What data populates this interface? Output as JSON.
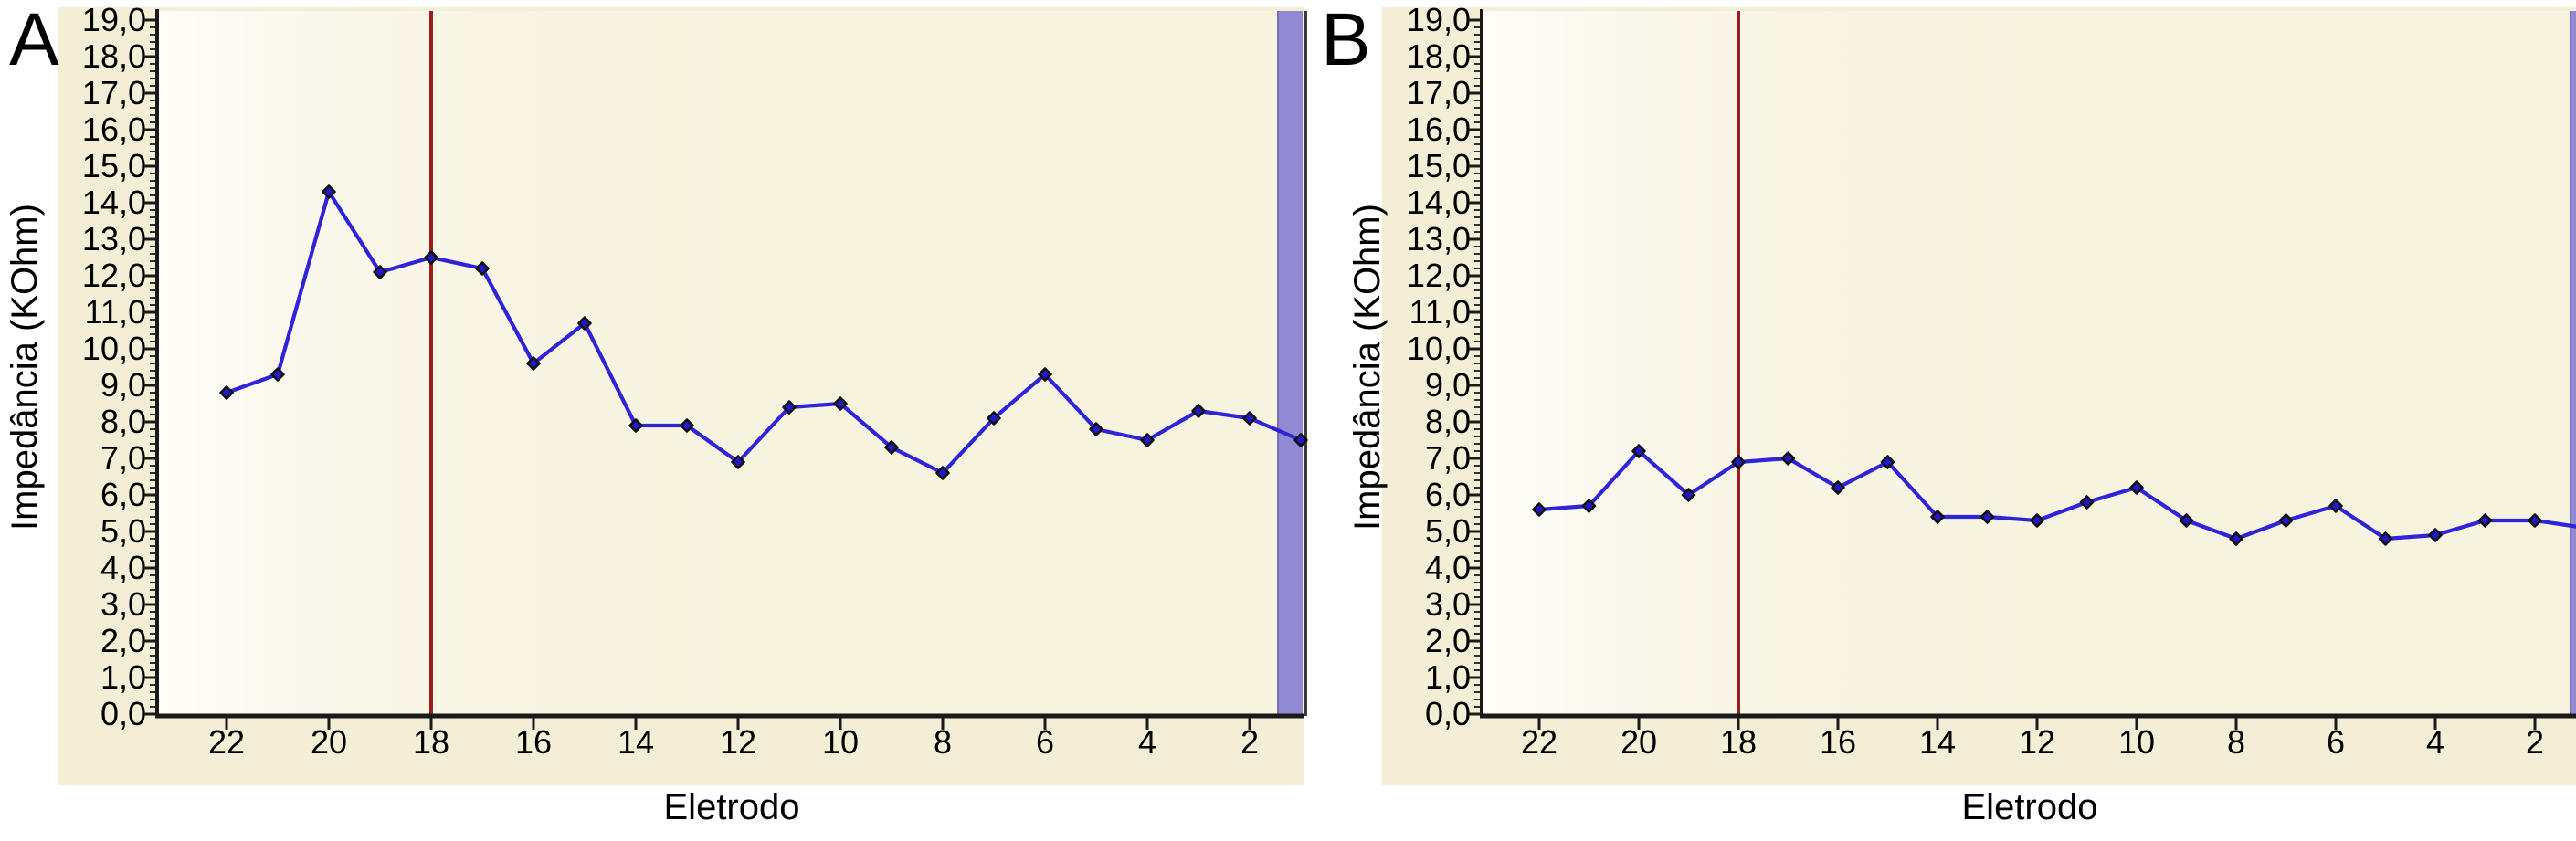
{
  "figure": {
    "description_visible_text_only": "",
    "y_axis_title": "Impedância (KOhm)",
    "x_axis_title": "Eletrodo"
  },
  "colors": {
    "line": "#2f24d6",
    "marker_fill": "#2318c8",
    "marker_stroke": "#111111",
    "reference_line": "#9c1e1e",
    "highlight_band": "#9289d5",
    "highlight_band_edge": "#7a70b8",
    "axis": "#1a1a1a",
    "panel_background": "#f2efd6",
    "plot_background": "#f6f3df"
  },
  "chart_data": [
    {
      "type": "line",
      "panel_label": "A",
      "xlabel": "Eletrodo",
      "ylabel": "Impedância (KOhm)",
      "x": [
        22,
        21,
        20,
        19,
        18,
        17,
        16,
        15,
        14,
        13,
        12,
        11,
        10,
        9,
        8,
        7,
        6,
        5,
        4,
        3,
        2,
        1
      ],
      "values": [
        8.8,
        9.3,
        14.3,
        12.1,
        12.5,
        12.2,
        9.6,
        10.7,
        7.9,
        7.9,
        6.9,
        8.4,
        8.5,
        7.3,
        6.6,
        8.1,
        9.3,
        7.8,
        7.5,
        8.3,
        8.1,
        7.5
      ],
      "ylim": [
        0,
        19
      ],
      "y_tick_step": 1.0,
      "y_minor_tick_step": 0.2,
      "y_tick_labels": [
        "19,0",
        "18,0",
        "17,0",
        "16,0",
        "15,0",
        "14,0",
        "13,0",
        "12,0",
        "11,0",
        "10,0",
        "9,0",
        "8,0",
        "7,0",
        "6,0",
        "5,0",
        "4,0",
        "3,0",
        "2,0",
        "1,0",
        "0,0"
      ],
      "x_tick_labels": [
        "22",
        "20",
        "18",
        "16",
        "14",
        "12",
        "10",
        "8",
        "6",
        "4",
        "2"
      ],
      "x_tick_electrodes": [
        22,
        20,
        18,
        16,
        14,
        12,
        10,
        8,
        6,
        4,
        2
      ],
      "x_axis_reversed": true,
      "grid": false,
      "legend": false,
      "marker": "diamond",
      "reference_vline_electrode": 18,
      "highlight_band_electrode": 1,
      "highlight_band_fully_visible": true
    },
    {
      "type": "line",
      "panel_label": "B",
      "xlabel": "Eletrodo",
      "ylabel": "Impedância (KOhm)",
      "x": [
        22,
        21,
        20,
        19,
        18,
        17,
        16,
        15,
        14,
        13,
        12,
        11,
        10,
        9,
        8,
        7,
        6,
        5,
        4,
        3,
        2,
        1
      ],
      "values": [
        5.6,
        5.7,
        7.2,
        6.0,
        6.9,
        7.0,
        6.2,
        6.9,
        5.4,
        5.4,
        5.3,
        5.8,
        6.2,
        5.3,
        4.8,
        5.3,
        5.7,
        4.8,
        4.9,
        5.3,
        5.3,
        5.1
      ],
      "ylim": [
        0,
        19
      ],
      "y_tick_step": 1.0,
      "y_minor_tick_step": 0.2,
      "y_tick_labels": [
        "19,0",
        "18,0",
        "17,0",
        "16,0",
        "15,0",
        "14,0",
        "13,0",
        "12,0",
        "11,0",
        "10,0",
        "9,0",
        "8,0",
        "7,0",
        "6,0",
        "5,0",
        "4,0",
        "3,0",
        "2,0",
        "1,0",
        "0,0"
      ],
      "x_tick_labels": [
        "22",
        "20",
        "18",
        "16",
        "14",
        "12",
        "10",
        "8",
        "6",
        "4",
        "2"
      ],
      "x_tick_electrodes": [
        22,
        20,
        18,
        16,
        14,
        12,
        10,
        8,
        6,
        4,
        2
      ],
      "x_axis_reversed": true,
      "grid": false,
      "legend": false,
      "marker": "diamond",
      "reference_vline_electrode": 18,
      "highlight_band_electrode": 1,
      "highlight_band_fully_visible": false
    }
  ]
}
